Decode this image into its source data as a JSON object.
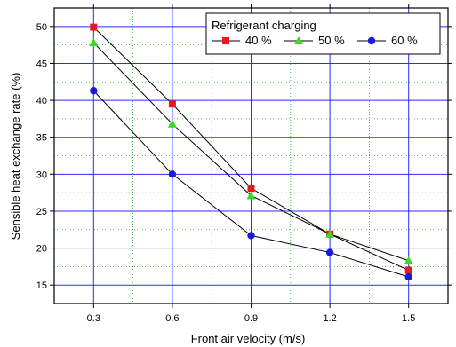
{
  "chart_data": {
    "type": "line",
    "xlabel": "Front air velocity (m/s)",
    "ylabel": "Sensible heat exchange rate (%)",
    "x": [
      0.3,
      0.6,
      0.9,
      1.2,
      1.5
    ],
    "x_tick_labels": [
      "0.3",
      "0.6",
      "0.9",
      "1.2",
      "1.5"
    ],
    "xlim": [
      0.15,
      1.65
    ],
    "ylim": [
      12.5,
      52.5
    ],
    "y_ticks": [
      15,
      20,
      25,
      30,
      35,
      40,
      45,
      50
    ],
    "grid": true,
    "legend_title": "Refrigerant charging",
    "legend_position": "top-right",
    "series": [
      {
        "name": "40 %",
        "color": "#e41a1c",
        "marker": "square",
        "values": [
          49.9,
          39.5,
          28.1,
          21.9,
          17.0
        ]
      },
      {
        "name": "50 %",
        "color": "#33dd22",
        "marker": "triangle",
        "values": [
          47.8,
          36.8,
          27.1,
          21.9,
          18.3
        ]
      },
      {
        "name": "60 %",
        "color": "#1a1add",
        "marker": "circle",
        "values": [
          41.3,
          30.0,
          21.7,
          19.4,
          16.1
        ]
      }
    ]
  }
}
